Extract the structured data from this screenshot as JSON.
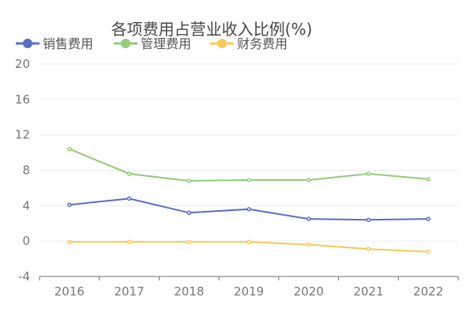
{
  "chart_data": {
    "type": "line",
    "title": "各项费用占营业收入比例(%)",
    "categories": [
      "2016",
      "2017",
      "2018",
      "2019",
      "2020",
      "2021",
      "2022"
    ],
    "ylim": [
      -4,
      20
    ],
    "yticks": [
      "-4",
      "0",
      "4",
      "8",
      "12",
      "16",
      "20"
    ],
    "grid": true,
    "legend_position": "top-left",
    "series": [
      {
        "name": "销售费用",
        "color": "#5470c6",
        "values": [
          4.1,
          4.8,
          3.2,
          3.6,
          2.5,
          2.4,
          2.5
        ]
      },
      {
        "name": "管理费用",
        "color": "#91cc75",
        "values": [
          10.4,
          7.6,
          6.8,
          6.9,
          6.9,
          7.6,
          7.0
        ]
      },
      {
        "name": "财务费用",
        "color": "#fac858",
        "values": [
          -0.1,
          -0.1,
          -0.1,
          -0.1,
          -0.4,
          -0.9,
          -1.2
        ]
      }
    ]
  }
}
